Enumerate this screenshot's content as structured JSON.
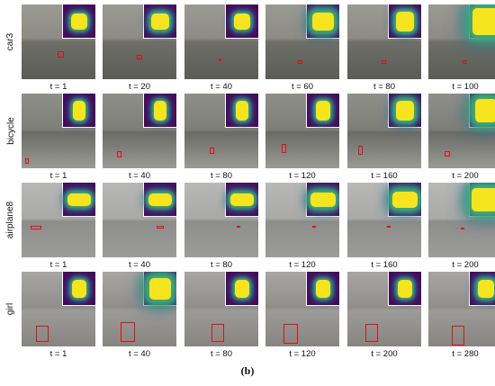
{
  "caption": "(b)",
  "rows": [
    {
      "label": "car3",
      "frames": [
        "t = 1",
        "t = 20",
        "t = 40",
        "t = 60",
        "t = 80",
        "t = 100"
      ]
    },
    {
      "label": "bicycle",
      "frames": [
        "t = 1",
        "t = 40",
        "t = 80",
        "t = 120",
        "t = 160",
        "t = 200"
      ]
    },
    {
      "label": "airplane8",
      "frames": [
        "t = 1",
        "t = 40",
        "t = 80",
        "t = 120",
        "t = 160",
        "t = 200"
      ]
    },
    {
      "label": "girl",
      "frames": [
        "t = 1",
        "t = 40",
        "t = 80",
        "t = 120",
        "t = 200",
        "t = 280"
      ]
    }
  ],
  "colors": {
    "heatmap_background": "#440a5a",
    "heatmap_peak": "#f6e41e",
    "bounding_box": "#e01010"
  }
}
